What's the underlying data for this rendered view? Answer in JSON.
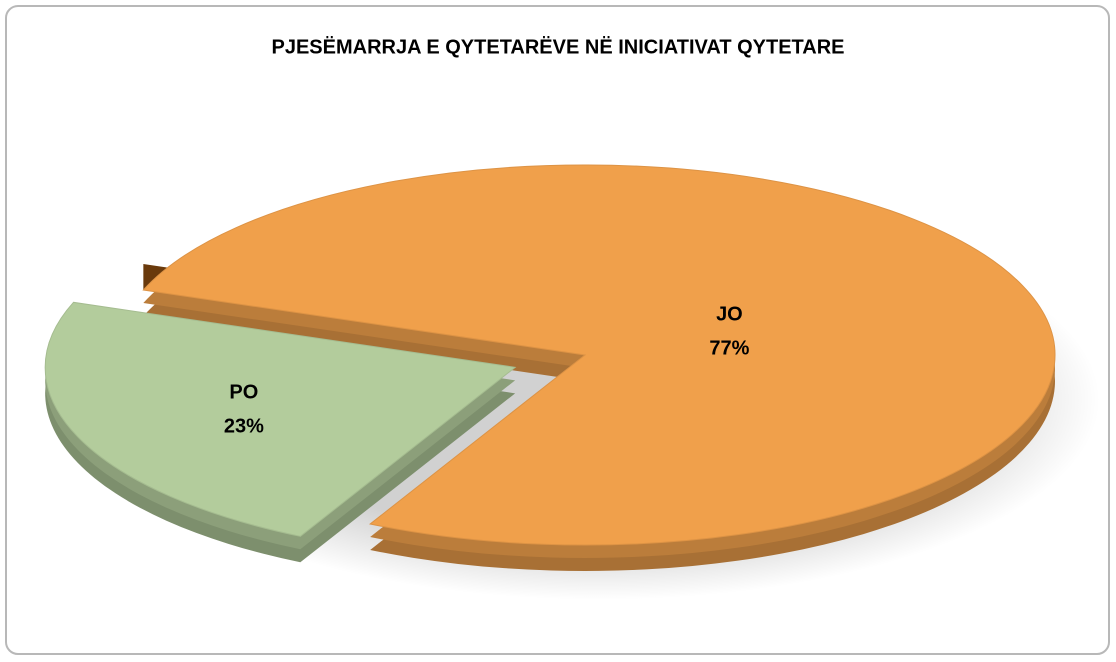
{
  "chart_data": {
    "type": "pie",
    "title": "PJESËMARRJA E QYTETARËVE NË INICIATIVAT QYTETARE",
    "categories": [
      "JO",
      "PO"
    ],
    "values": [
      77,
      23
    ],
    "value_labels": [
      "77%",
      "23%"
    ],
    "colors": [
      "#f0a04b",
      "#b3cc9c"
    ]
  }
}
